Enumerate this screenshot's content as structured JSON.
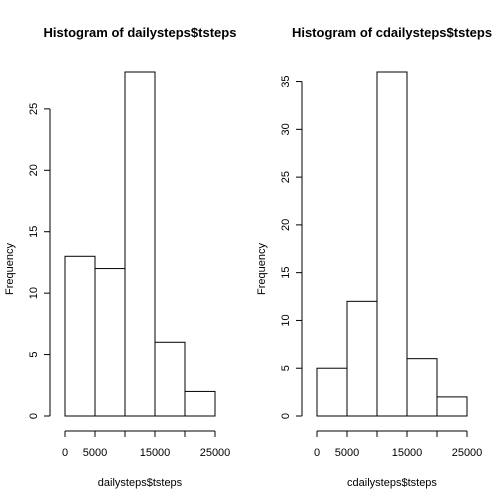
{
  "chart_data": [
    {
      "type": "bar",
      "title": "Histogram of dailysteps$tsteps",
      "xlabel": "dailysteps$tsteps",
      "ylabel": "Frequency",
      "bins": [
        [
          0,
          5000
        ],
        [
          5000,
          10000
        ],
        [
          10000,
          15000
        ],
        [
          15000,
          20000
        ],
        [
          20000,
          25000
        ]
      ],
      "values": [
        13,
        12,
        28,
        6,
        2
      ],
      "xlim": [
        0,
        25000
      ],
      "ylim": [
        0,
        28
      ],
      "xticks": [
        0,
        5000,
        15000,
        25000
      ],
      "xtick_labels": [
        "0",
        "5000",
        "15000",
        "25000"
      ],
      "xtick_marks": [
        0,
        5000,
        10000,
        15000,
        20000,
        25000
      ],
      "yticks": [
        0,
        5,
        10,
        15,
        20,
        25
      ],
      "ytick_labels": [
        "0",
        "5",
        "10",
        "15",
        "20",
        "25"
      ],
      "grid": false,
      "legend": "none"
    },
    {
      "type": "bar",
      "title": "Histogram of cdailysteps$tsteps",
      "xlabel": "cdailysteps$tsteps",
      "ylabel": "Frequency",
      "bins": [
        [
          0,
          5000
        ],
        [
          5000,
          10000
        ],
        [
          10000,
          15000
        ],
        [
          15000,
          20000
        ],
        [
          20000,
          25000
        ]
      ],
      "values": [
        5,
        12,
        36,
        6,
        2
      ],
      "xlim": [
        0,
        25000
      ],
      "ylim": [
        0,
        36
      ],
      "xticks": [
        0,
        5000,
        15000,
        25000
      ],
      "xtick_labels": [
        "0",
        "5000",
        "15000",
        "25000"
      ],
      "xtick_marks": [
        0,
        5000,
        10000,
        15000,
        20000,
        25000
      ],
      "yticks": [
        0,
        5,
        10,
        15,
        20,
        25,
        30,
        35
      ],
      "ytick_labels": [
        "0",
        "5",
        "10",
        "15",
        "20",
        "25",
        "30",
        "35"
      ],
      "grid": false,
      "legend": "none"
    }
  ]
}
